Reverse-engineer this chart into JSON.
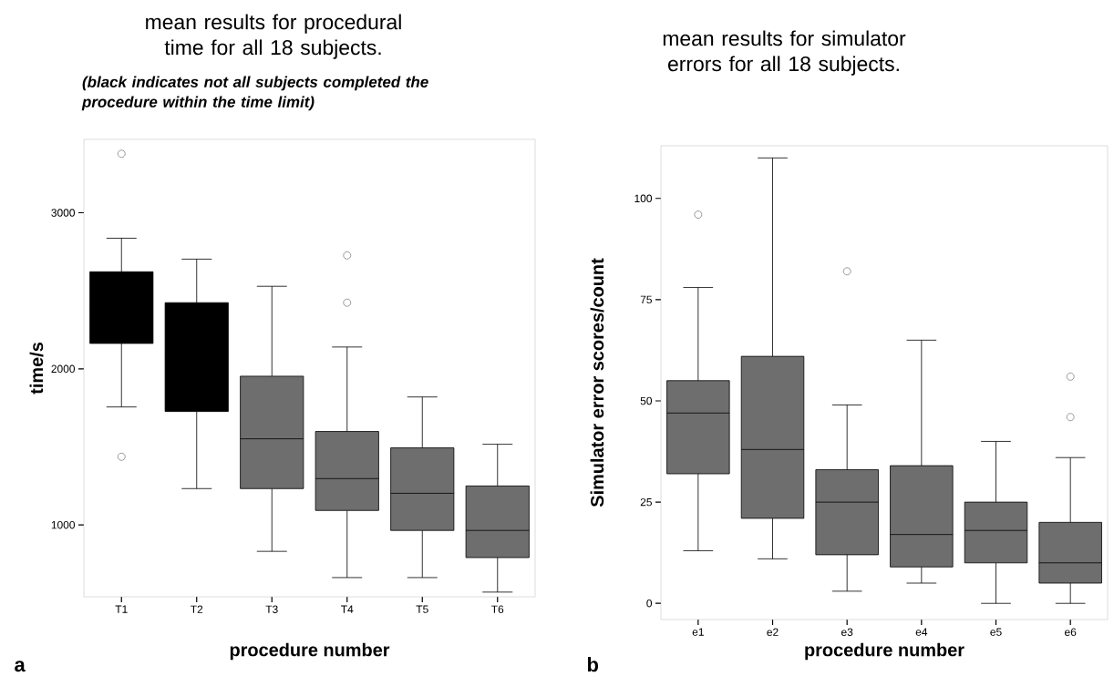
{
  "chart_data": [
    {
      "type": "box",
      "title": "mean results for procedural time for all 18 subjects.",
      "subtitle": "(black indicates not all subjects completed the procedure within the time limit)",
      "xlabel": "procedure number",
      "ylabel": "time/s",
      "categories": [
        "T1",
        "T2",
        "T3",
        "T4",
        "T5",
        "T6"
      ],
      "boxes": [
        {
          "low": 1756,
          "q1": 2163,
          "median": 2400,
          "q3": 2622,
          "high": 2837,
          "outliers": [
            3378,
            1437
          ]
        },
        {
          "low": 1233,
          "q1": 1727,
          "median": 2100,
          "q3": 2424,
          "high": 2703
        },
        {
          "low": 831,
          "q1": 1233,
          "median": 1552,
          "q3": 1953,
          "high": 2529
        },
        {
          "low": 663,
          "q1": 1093,
          "median": 1297,
          "q3": 1599,
          "high": 2140,
          "outliers": [
            2727,
            2424
          ]
        },
        {
          "low": 663,
          "q1": 965,
          "median": 1203,
          "q3": 1494,
          "high": 1820
        },
        {
          "low": 570,
          "q1": 791,
          "median": 965,
          "q3": 1250,
          "high": 1517
        }
      ],
      "colors": [
        "#000000",
        "#000000",
        "#6e6e6e",
        "#6e6e6e",
        "#6e6e6e",
        "#6e6e6e"
      ],
      "ylim": [
        540,
        3470
      ],
      "yticks": [
        1000,
        2000,
        3000
      ],
      "annotations": [
        "a"
      ]
    },
    {
      "type": "box",
      "title": "mean results for simulator errors for all 18 subjects.",
      "xlabel": "procedure number",
      "ylabel": "Simulator error scores/count",
      "categories": [
        "e1",
        "e2",
        "e3",
        "e4",
        "e5",
        "e6"
      ],
      "boxes": [
        {
          "low": 13,
          "q1": 32,
          "median": 47,
          "q3": 55,
          "high": 78,
          "outliers": [
            96
          ]
        },
        {
          "low": 11,
          "q1": 21,
          "median": 38,
          "q3": 61,
          "high": 110
        },
        {
          "low": 3,
          "q1": 12,
          "median": 25,
          "q3": 33,
          "high": 49,
          "outliers": [
            82
          ]
        },
        {
          "low": 5,
          "q1": 9,
          "median": 17,
          "q3": 34,
          "high": 65
        },
        {
          "low": 0,
          "q1": 10,
          "median": 18,
          "q3": 25,
          "high": 40
        },
        {
          "low": 0,
          "q1": 5,
          "median": 10,
          "q3": 20,
          "high": 36,
          "outliers": [
            56,
            46
          ]
        }
      ],
      "colors": [
        "#6e6e6e",
        "#6e6e6e",
        "#6e6e6e",
        "#6e6e6e",
        "#6e6e6e",
        "#6e6e6e"
      ],
      "ylim": [
        -4,
        113
      ],
      "yticks": [
        0,
        25,
        50,
        75,
        100
      ],
      "annotations": [
        "b"
      ]
    }
  ]
}
